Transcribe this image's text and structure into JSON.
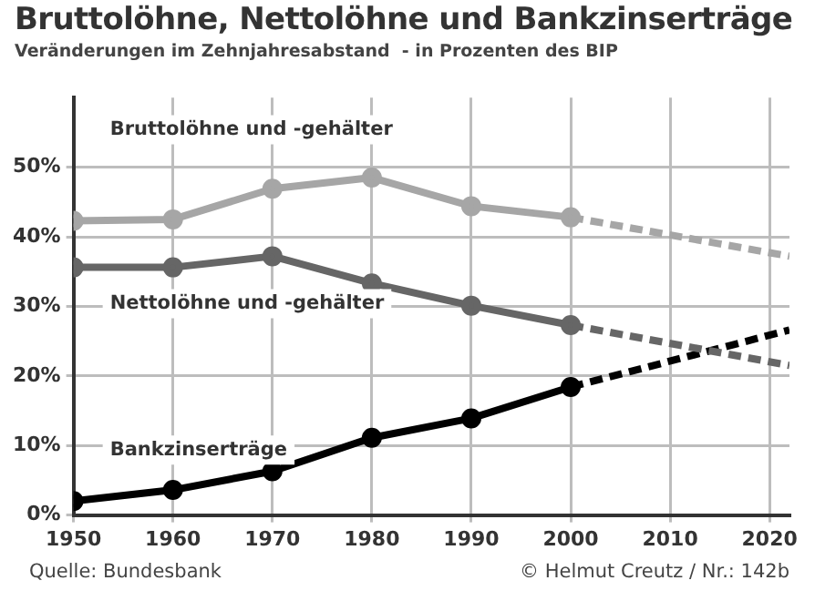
{
  "chart_data": {
    "type": "line",
    "title": "Bruttolöhne, Nettolöhne und Bankzinserträge",
    "subtitle": "Veränderungen im Zehnjahresabstand  - in Prozenten des BIP",
    "annotations": [
      "Quelle: Bundesbank",
      "© Helmut Creutz / Nr.: 142b"
    ],
    "xlim": [
      1950,
      2022
    ],
    "xticks": [
      1950,
      1960,
      1970,
      1980,
      1990,
      2000,
      2010,
      2020
    ],
    "ylim": [
      0,
      60
    ],
    "yticks": [
      {
        "value": 0,
        "label": "0%"
      },
      {
        "value": 10,
        "label": "10%"
      },
      {
        "value": 20,
        "label": "20%"
      },
      {
        "value": 30,
        "label": "30%"
      },
      {
        "value": 40,
        "label": "40%"
      },
      {
        "value": 50,
        "label": "50%"
      }
    ],
    "grid": true,
    "series": [
      {
        "name": "Bruttolöhne und -gehälter",
        "color": "#a6a6a6",
        "x": [
          1950,
          1960,
          1970,
          1980,
          1990,
          2000
        ],
        "values": [
          42.3,
          42.5,
          46.9,
          48.5,
          44.4,
          42.8
        ],
        "marker": "circle",
        "line_style": "solid"
      },
      {
        "color": "#a6a6a6",
        "x": [
          2000,
          2022
        ],
        "values": [
          42.8,
          37.2
        ],
        "marker": "none",
        "line_style": "dashed"
      },
      {
        "name": "Nettolöhne und -gehälter",
        "color": "#666666",
        "x": [
          1950,
          1960,
          1970,
          1980,
          1990,
          2000
        ],
        "values": [
          35.6,
          35.6,
          37.2,
          33.3,
          30.1,
          27.3
        ],
        "marker": "circle",
        "line_style": "solid"
      },
      {
        "color": "#666666",
        "x": [
          2000,
          2022
        ],
        "values": [
          27.3,
          21.5
        ],
        "marker": "none",
        "line_style": "dashed"
      },
      {
        "name": "Bankzinserträge",
        "color": "#000000",
        "x": [
          1950,
          1960,
          1970,
          1980,
          1990,
          2000
        ],
        "values": [
          2.0,
          3.6,
          6.3,
          11.1,
          13.9,
          18.4
        ],
        "marker": "circle",
        "line_style": "solid"
      },
      {
        "color": "#000000",
        "x": [
          2000,
          2022
        ],
        "values": [
          18.4,
          26.6
        ],
        "marker": "none",
        "line_style": "dashed"
      }
    ]
  }
}
